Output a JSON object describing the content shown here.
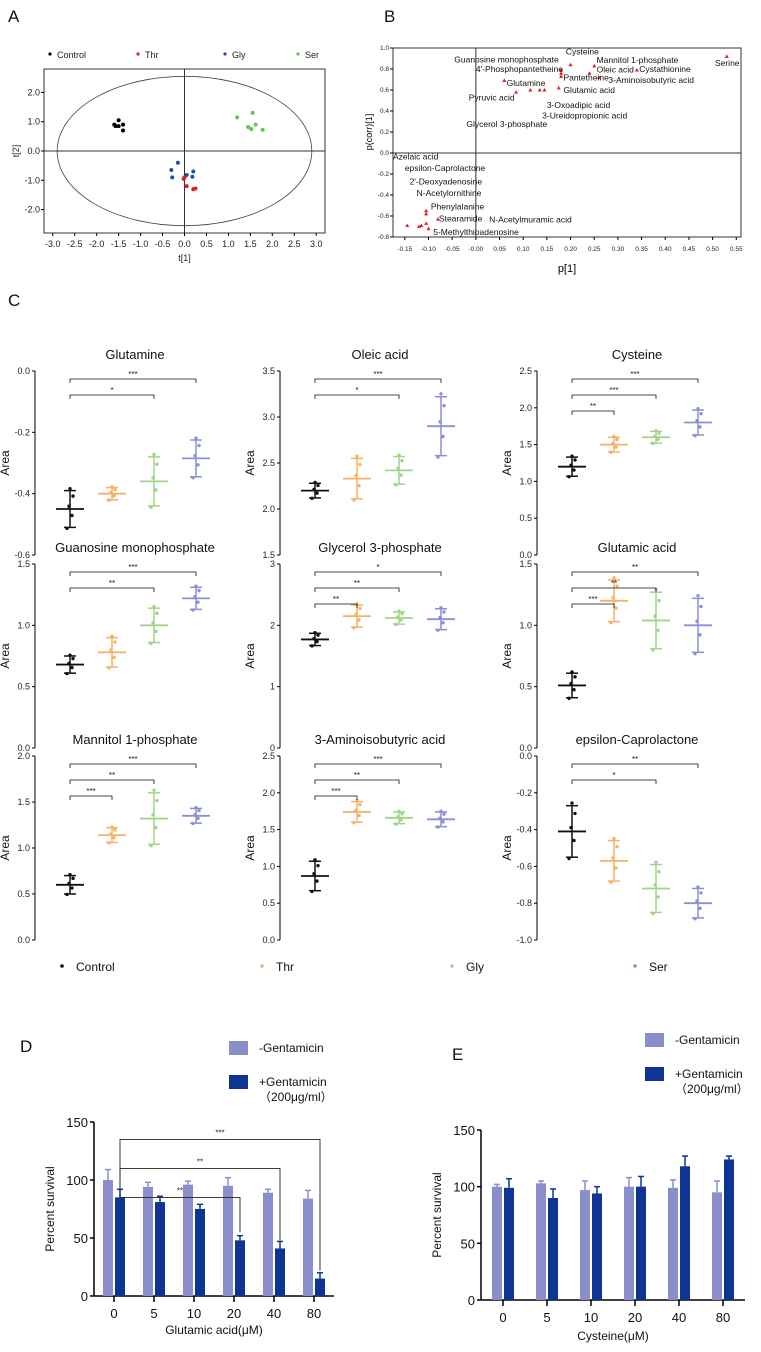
{
  "panels": {
    "a": "A",
    "b": "B",
    "c": "C",
    "d": "D",
    "e": "E"
  },
  "chart_data": [
    {
      "id": "A",
      "type": "scatter",
      "xlabel": "t[1]",
      "ylabel": "t[2]",
      "xlim": [
        -3.2,
        3.2
      ],
      "ylim": [
        -2.8,
        2.8
      ],
      "xticks": [
        "-3.0",
        "-2.5",
        "-2.0",
        "-1.5",
        "-1.0",
        "-0.5",
        "0.0",
        "0.5",
        "1.0",
        "1.5",
        "2.0",
        "2.5",
        "3.0"
      ],
      "yticks": [
        "2.0",
        "1.0",
        "0.0",
        "-1.0",
        "-2.0"
      ],
      "series": [
        {
          "name": "Control",
          "color": "#000000",
          "points": [
            [
              -1.6,
              0.9
            ],
            [
              -1.5,
              1.05
            ],
            [
              -1.5,
              0.85
            ],
            [
              -1.4,
              0.9
            ],
            [
              -1.57,
              0.85
            ],
            [
              -1.4,
              0.7
            ]
          ]
        },
        {
          "name": "Thr",
          "color": "#e41a1c",
          "points": [
            [
              0,
              -0.9
            ],
            [
              0.05,
              -1.2
            ],
            [
              0.2,
              -1.3
            ],
            [
              0.25,
              -1.28
            ],
            [
              -0.02,
              -0.95
            ]
          ]
        },
        {
          "name": "Gly",
          "color": "#1f4fb4",
          "points": [
            [
              -0.3,
              -0.65
            ],
            [
              -0.28,
              -0.9
            ],
            [
              -0.15,
              -0.4
            ],
            [
              0.05,
              -0.82
            ],
            [
              0.2,
              -0.7
            ],
            [
              0.18,
              -0.88
            ]
          ]
        },
        {
          "name": "Ser",
          "color": "#5cc84a",
          "points": [
            [
              1.2,
              1.15
            ],
            [
              1.55,
              1.3
            ],
            [
              1.45,
              0.82
            ],
            [
              1.52,
              0.75
            ],
            [
              1.62,
              0.9
            ],
            [
              1.78,
              0.72
            ]
          ]
        }
      ]
    },
    {
      "id": "B",
      "type": "scatter",
      "xlabel": "p[1]",
      "ylabel": "p(corr)[1]",
      "xlim": [
        -0.175,
        0.56
      ],
      "ylim": [
        -0.8,
        1.0
      ],
      "xticks": [
        "-0.15",
        "-0.10",
        "-0.05",
        "-0.00",
        "0.05",
        "0.10",
        "0.15",
        "0.20",
        "0.25",
        "0.30",
        "0.35",
        "0.40",
        "0.45",
        "0.50",
        "0.55"
      ],
      "yticks": [
        "1.0",
        "0.8",
        "0.6",
        "0.4",
        "0.2",
        "0.0",
        "-0.2",
        "-0.4",
        "-0.6",
        "-0.8"
      ],
      "points": [
        {
          "name": "Serine",
          "x": 0.53,
          "y": 0.92
        },
        {
          "name": "Cysteine",
          "x": 0.2,
          "y": 0.84
        },
        {
          "name": "Guanosine monophosphate",
          "x": 0.18,
          "y": 0.79
        },
        {
          "name": "4'-Phosphopantetheine",
          "x": 0.18,
          "y": 0.76
        },
        {
          "name": "Mannitol 1-phosphate",
          "x": 0.25,
          "y": 0.83
        },
        {
          "name": "Oleic acid",
          "x": 0.24,
          "y": 0.76
        },
        {
          "name": "Cystathionine",
          "x": 0.34,
          "y": 0.79
        },
        {
          "name": "3-Aminoisobutyric acid",
          "x": 0.26,
          "y": 0.72
        },
        {
          "name": "Pantetheine",
          "x": 0.18,
          "y": 0.73
        },
        {
          "name": "Glutamic acid",
          "x": 0.175,
          "y": 0.62
        },
        {
          "name": "Glutamine",
          "x": 0.06,
          "y": 0.69
        },
        {
          "name": "Pyruvic acid",
          "x": 0.085,
          "y": 0.58
        },
        {
          "name": "Glycerol 3-phosphate",
          "x": 0.115,
          "y": 0.6
        },
        {
          "name": "3-Oxoadipic acid",
          "x": 0.135,
          "y": 0.6
        },
        {
          "name": "3-Ureidopropionic acid",
          "x": 0.145,
          "y": 0.6
        },
        {
          "name": "Azelaic acid",
          "x": -0.145,
          "y": -0.69
        },
        {
          "name": "epsilon-Caprolactone",
          "x": -0.12,
          "y": -0.7
        },
        {
          "name": "2'-Deoxyadenosine",
          "x": -0.115,
          "y": -0.69
        },
        {
          "name": "N-Acetylornithine",
          "x": -0.105,
          "y": -0.55
        },
        {
          "name": "Phenylalanine",
          "x": -0.105,
          "y": -0.58
        },
        {
          "name": "Stearamide",
          "x": -0.08,
          "y": -0.63
        },
        {
          "name": "N-Acetylmuramic acid",
          "x": -0.105,
          "y": -0.67
        },
        {
          "name": "5-Methylthioadenosine",
          "x": -0.1,
          "y": -0.72
        }
      ]
    },
    {
      "id": "C",
      "type": "scatter",
      "ylabel": "Area",
      "groups": [
        {
          "name": "Control",
          "color": "#111111"
        },
        {
          "name": "Thr",
          "color": "#f5b266"
        },
        {
          "name": "Gly",
          "color": "#9fd48a"
        },
        {
          "name": "Ser",
          "color": "#8b8fd6"
        }
      ],
      "plots": [
        {
          "title": "Glutamine",
          "ylim": [
            -0.6,
            0.0
          ],
          "yticks": [
            "-0.6",
            "-0.4",
            "-0.2",
            "0.0"
          ],
          "mean": [
            -0.45,
            -0.4,
            -0.36,
            -0.285
          ],
          "sd": [
            0.06,
            0.02,
            0.08,
            0.06
          ],
          "sig": [
            {
              "g": 3,
              "label": "***"
            },
            {
              "g": 2,
              "label": "*"
            }
          ]
        },
        {
          "title": "Oleic acid",
          "ylim": [
            1.5,
            3.5
          ],
          "yticks": [
            "1.5",
            "2.0",
            "2.5",
            "3.0",
            "3.5"
          ],
          "mean": [
            2.2,
            2.33,
            2.42,
            2.9
          ],
          "sd": [
            0.08,
            0.22,
            0.15,
            0.32
          ],
          "sig": [
            {
              "g": 3,
              "label": "***"
            },
            {
              "g": 2,
              "label": "*"
            }
          ]
        },
        {
          "title": "Cysteine",
          "ylim": [
            0,
            2.5
          ],
          "yticks": [
            "0.0",
            "0.5",
            "1.0",
            "1.5",
            "2.0",
            "2.5"
          ],
          "mean": [
            1.2,
            1.5,
            1.6,
            1.8
          ],
          "sd": [
            0.13,
            0.1,
            0.08,
            0.17
          ],
          "sig": [
            {
              "g": 3,
              "label": "***"
            },
            {
              "g": 2,
              "label": "***"
            },
            {
              "g": 1,
              "label": "**"
            }
          ]
        },
        {
          "title": "Guanosine monophosphate",
          "ylim": [
            0,
            1.5
          ],
          "yticks": [
            "0.0",
            "0.5",
            "1.0",
            "1.5"
          ],
          "mean": [
            0.68,
            0.78,
            1.0,
            1.22
          ],
          "sd": [
            0.07,
            0.12,
            0.14,
            0.09
          ],
          "sig": [
            {
              "g": 3,
              "label": "***"
            },
            {
              "g": 2,
              "label": "**"
            }
          ]
        },
        {
          "title": "Glycerol 3-phosphate",
          "ylim": [
            0,
            3
          ],
          "yticks": [
            "0",
            "1",
            "2",
            "3"
          ],
          "mean": [
            1.77,
            2.15,
            2.12,
            2.1
          ],
          "sd": [
            0.1,
            0.18,
            0.1,
            0.17
          ],
          "sig": [
            {
              "g": 3,
              "label": "*"
            },
            {
              "g": 2,
              "label": "**"
            },
            {
              "g": 1,
              "label": "**"
            }
          ]
        },
        {
          "title": "Glutamic acid",
          "ylim": [
            0,
            1.5
          ],
          "yticks": [
            "0.0",
            "0.5",
            "1.0",
            "1.5"
          ],
          "mean": [
            0.51,
            1.2,
            1.04,
            1.0
          ],
          "sd": [
            0.1,
            0.17,
            0.23,
            0.22
          ],
          "sig": [
            {
              "g": 3,
              "label": "**"
            },
            {
              "g": 2,
              "label": "**"
            },
            {
              "g": 1,
              "label": "***"
            }
          ]
        },
        {
          "title": "Mannitol 1-phosphate",
          "ylim": [
            0,
            2.0
          ],
          "yticks": [
            "0.0",
            "0.5",
            "1.0",
            "1.5",
            "2.0"
          ],
          "mean": [
            0.6,
            1.14,
            1.32,
            1.35
          ],
          "sd": [
            0.1,
            0.08,
            0.28,
            0.08
          ],
          "sig": [
            {
              "g": 3,
              "label": "***"
            },
            {
              "g": 2,
              "label": "**"
            },
            {
              "g": 1,
              "label": "***"
            }
          ]
        },
        {
          "title": "3-Aminoisobutyric acid",
          "ylim": [
            0,
            2.5
          ],
          "yticks": [
            "0.0",
            "0.5",
            "1.0",
            "1.5",
            "2.0",
            "2.5"
          ],
          "mean": [
            0.87,
            1.74,
            1.66,
            1.64
          ],
          "sd": [
            0.2,
            0.14,
            0.08,
            0.1
          ],
          "sig": [
            {
              "g": 3,
              "label": "***"
            },
            {
              "g": 2,
              "label": "**"
            },
            {
              "g": 1,
              "label": "***"
            }
          ]
        },
        {
          "title": "epsilon-Caprolactone",
          "ylim": [
            -1.0,
            0.0
          ],
          "yticks": [
            "-1.0",
            "-0.8",
            "-0.6",
            "-0.4",
            "-0.2",
            "0.0"
          ],
          "mean": [
            -0.41,
            -0.57,
            -0.72,
            -0.8
          ],
          "sd": [
            0.14,
            0.11,
            0.13,
            0.08
          ],
          "sig": [
            {
              "g": 3,
              "label": "**"
            },
            {
              "g": 2,
              "label": "*"
            }
          ]
        }
      ]
    },
    {
      "id": "D",
      "type": "bar",
      "xlabel": "Glutamic acid(μM)",
      "ylabel": "Percent survival",
      "ylim": [
        0,
        150
      ],
      "yticks": [
        "0",
        "50",
        "100",
        "150"
      ],
      "categories": [
        "0",
        "5",
        "10",
        "20",
        "40",
        "80"
      ],
      "series": [
        {
          "name": "-Gentamicin",
          "color": "#8a8fcc",
          "values": [
            100,
            94,
            96,
            95,
            89,
            84
          ],
          "err": [
            9,
            4,
            3,
            7,
            3,
            7
          ]
        },
        {
          "name": "+Gentamicin",
          "sub": "（200μg/ml）",
          "color": "#0d3591",
          "values": [
            85,
            81,
            75,
            48,
            41,
            15
          ],
          "err": [
            7,
            5,
            4,
            4,
            6,
            5
          ]
        }
      ],
      "sig": [
        {
          "cat": 5,
          "label": "***"
        },
        {
          "cat": 4,
          "label": "**"
        },
        {
          "cat": 3,
          "label": "**"
        }
      ]
    },
    {
      "id": "E",
      "type": "bar",
      "xlabel": "Cysteine(μM)",
      "ylabel": "Percent survival",
      "ylim": [
        0,
        150
      ],
      "yticks": [
        "0",
        "50",
        "100",
        "150"
      ],
      "categories": [
        "0",
        "5",
        "10",
        "20",
        "40",
        "80"
      ],
      "series": [
        {
          "name": "-Gentamicin",
          "color": "#8a8fcc",
          "values": [
            100,
            103,
            97,
            100,
            99,
            95
          ],
          "err": [
            2,
            2,
            8,
            8,
            7,
            10
          ]
        },
        {
          "name": "+Gentamicin",
          "sub": "（200μg/ml）",
          "color": "#0d3591",
          "values": [
            99,
            90,
            94,
            100,
            118,
            124
          ],
          "err": [
            8,
            8,
            6,
            9,
            9,
            3
          ]
        }
      ]
    }
  ]
}
